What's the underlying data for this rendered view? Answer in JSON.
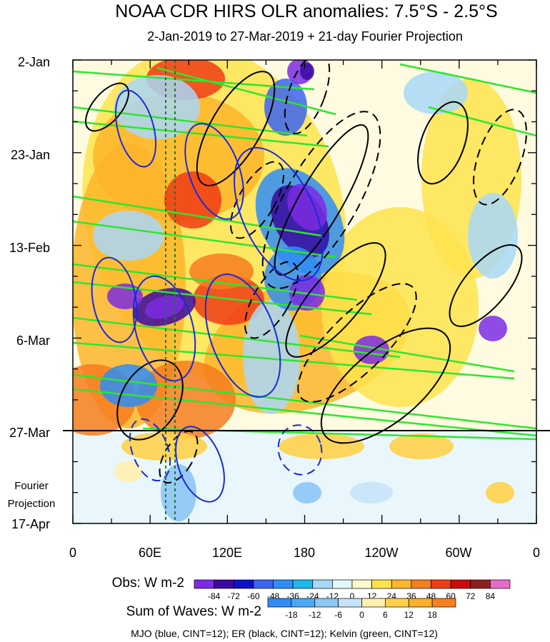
{
  "chart_data": {
    "type": "heatmap",
    "title": "NOAA CDR HIRS OLR anomalies: 7.5°S - 2.5°S",
    "subtitle": "2-Jan-2019 to 27-Mar-2019 + 21-day Fourier Projection",
    "y_ticks": [
      "2-Jan",
      "23-Jan",
      "13-Feb",
      "6-Mar",
      "27-Mar",
      "17-Apr"
    ],
    "x_ticks": [
      "0",
      "60E",
      "120E",
      "180",
      "120W",
      "60W",
      "0"
    ],
    "projection_label": [
      "Fourier",
      "Projection"
    ],
    "obs_colorbar": {
      "label": "Obs: W m-2",
      "ticks": [
        "-84",
        "-72",
        "-60",
        "-48",
        "-36",
        "-24",
        "-12",
        "0",
        "12",
        "24",
        "36",
        "48",
        "60",
        "72",
        "84"
      ],
      "colors": [
        "#7b2be3",
        "#3a0aa0",
        "#1010c8",
        "#3b64f0",
        "#2f8df5",
        "#1eb8ef",
        "#a8d7f7",
        "#e2f6fb",
        "#fffbcf",
        "#fde34c",
        "#fdb52a",
        "#f57c1f",
        "#f03c14",
        "#cc0b0b",
        "#8c1f1f",
        "#e86cc6"
      ]
    },
    "waves_colorbar": {
      "label": "Sum of Waves: W m-2",
      "ticks": [
        "-18",
        "-12",
        "-6",
        "0",
        "6",
        "12",
        "18"
      ],
      "colors": [
        "#2f8df5",
        "#49a9f5",
        "#8cc7f5",
        "#c6e4f7",
        "#fff1b0",
        "#fdd24a",
        "#fdb02a",
        "#f6821e"
      ]
    },
    "footer": "MJO (blue, CINT=12); ER (black, CINT=12); Kelvin (green, CINT=12)",
    "ref_lines": {
      "forecast_start": "27-Mar",
      "vertical_longitudes_deg": [
        72.5,
        80
      ]
    },
    "wave_colors": {
      "mjo": "#1a2bd6",
      "er": "#000000",
      "kelvin": "#2ee62e"
    }
  }
}
